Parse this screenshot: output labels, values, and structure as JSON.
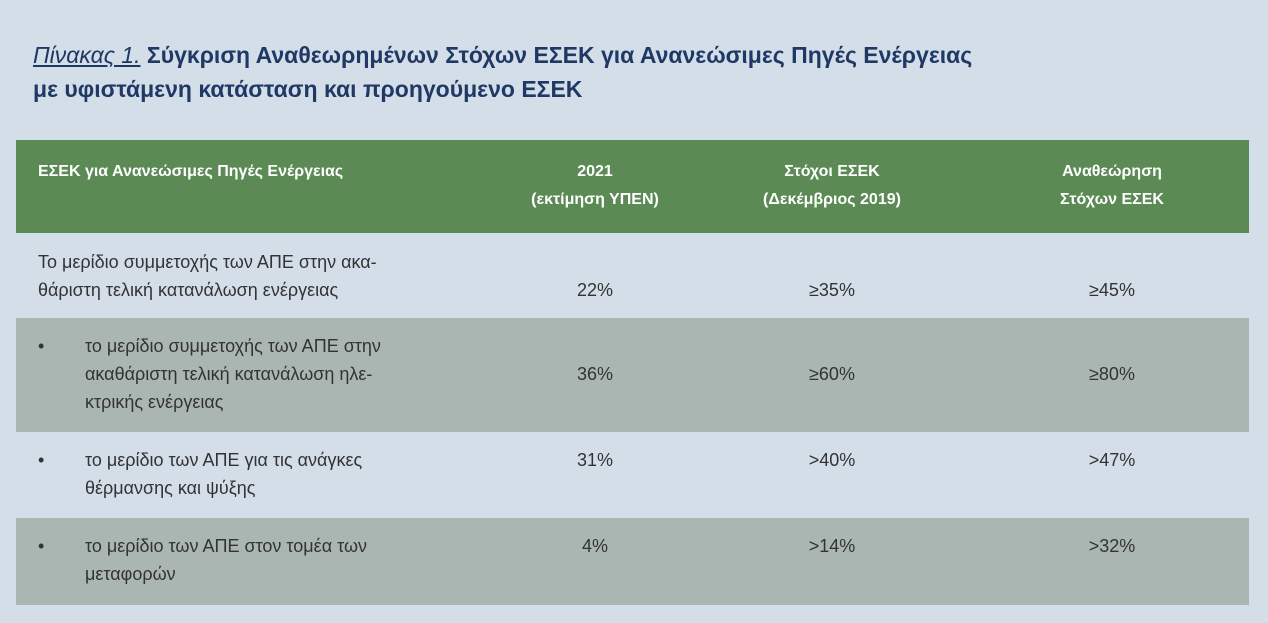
{
  "title": {
    "label": "Πίνακας 1.",
    "lines": [
      "Σύγκριση Αναθεωρημένων Στόχων ΕΣΕΚ για Ανανεώσιμες Πηγές Ενέργειας",
      "με υφιστάμενη κατάσταση και προηγούμενο ΕΣΕΚ"
    ]
  },
  "table": {
    "header": [
      {
        "lines": [
          "ΕΣΕΚ για Ανανεώσιμες Πηγές Ενέργειας"
        ]
      },
      {
        "lines": [
          "2021",
          "(εκτίμηση ΥΠΕΝ)"
        ]
      },
      {
        "lines": [
          "Στόχοι ΕΣΕΚ",
          "(Δεκέμβριος 2019)"
        ]
      },
      {
        "lines": [
          "Αναθεώρηση",
          "Στόχων ΕΣΕΚ"
        ]
      }
    ],
    "rows": [
      {
        "lines": [
          "Το μερίδιο συμμετοχής των ΑΠΕ στην ακα-",
          "θάριστη τελική κατανάλωση ενέργειας"
        ],
        "cells": [
          "22%",
          "≥35%",
          "≥45%"
        ]
      },
      {
        "bullet": "•",
        "lines": [
          "το μερίδιο συμμετοχής των ΑΠΕ στην",
          "ακαθάριστη τελική κατανάλωση ηλε-",
          "κτρικής ενέργειας"
        ],
        "cells": [
          "36%",
          "≥60%",
          "≥80%"
        ]
      },
      {
        "bullet": "•",
        "lines": [
          "το μερίδιο των ΑΠΕ για τις ανάγκες",
          "θέρμανσης και ψύξης"
        ],
        "cells": [
          "31%",
          ">40%",
          ">47%"
        ]
      },
      {
        "bullet": "•",
        "lines": [
          "το μερίδιο των ΑΠΕ στον τομέα των",
          "μεταφορών"
        ],
        "cells": [
          "4%",
          ">14%",
          ">32%"
        ]
      }
    ]
  }
}
